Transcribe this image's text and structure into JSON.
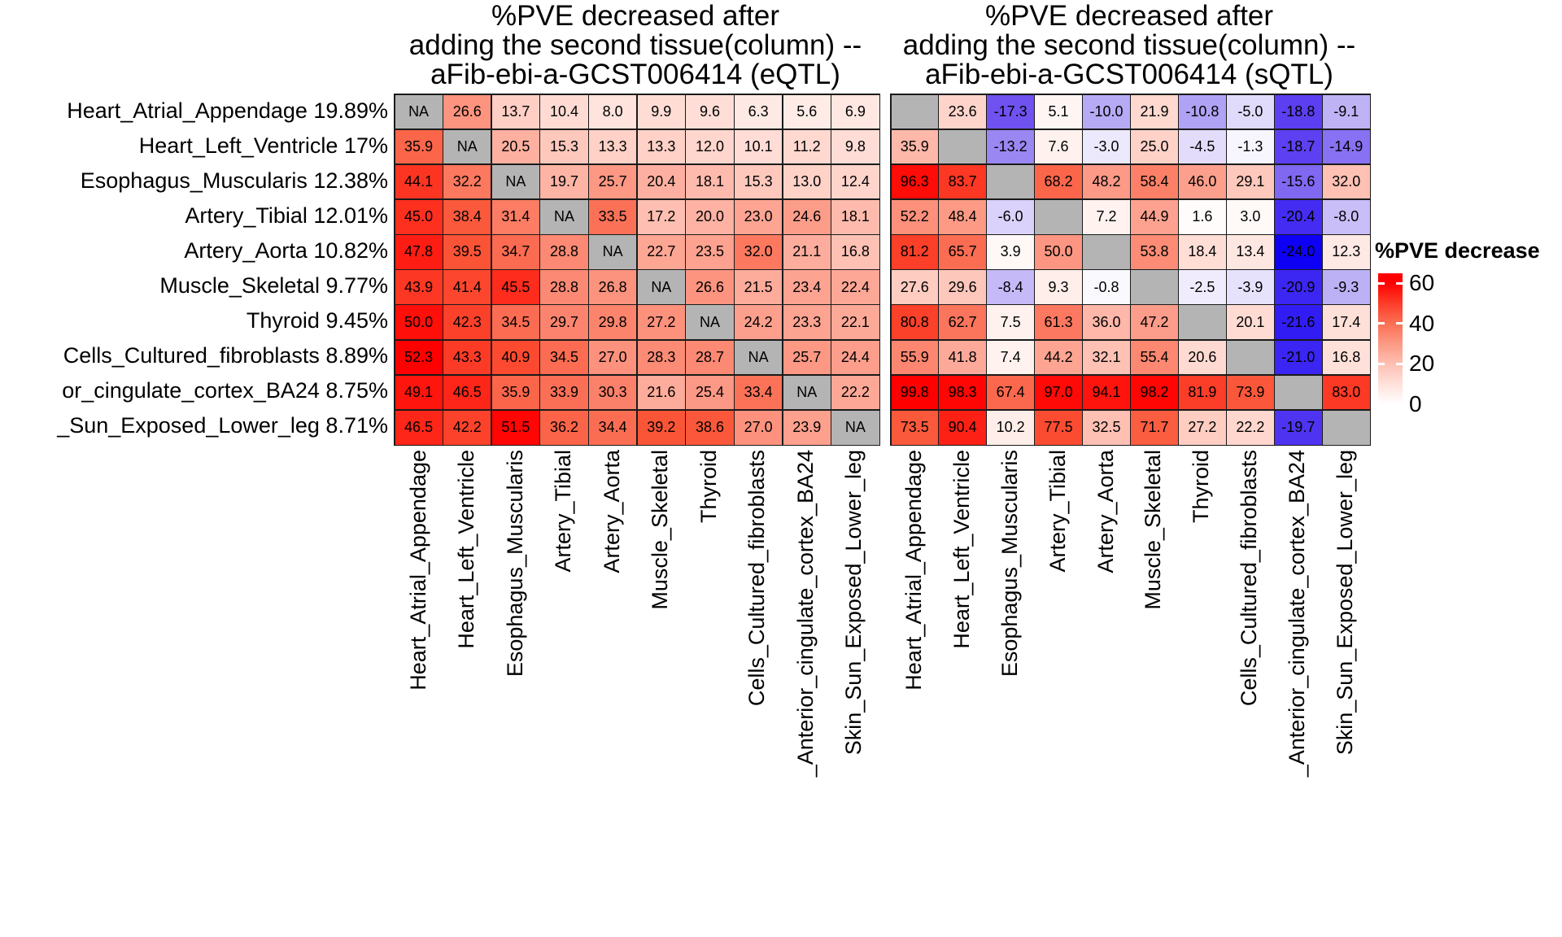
{
  "legend": {
    "title": "%PVE decrease",
    "tick_labels": [
      "60",
      "40",
      "20",
      "0"
    ]
  },
  "chart_data": [
    {
      "type": "heatmap",
      "qtl": "eQTL",
      "title_lines": [
        "%PVE decreased after",
        "adding the second tissue(column) --",
        "aFib-ebi-a-GCST006414 (eQTL)"
      ],
      "rows": [
        "Heart_Atrial_Appendage 19.89%",
        "Heart_Left_Ventricle 17%",
        "Esophagus_Muscularis 12.38%",
        "Artery_Tibial 12.01%",
        "Artery_Aorta 10.82%",
        "Muscle_Skeletal 9.77%",
        "Thyroid 9.45%",
        "Cells_Cultured_fibroblasts 8.89%",
        "or_cingulate_cortex_BA24 8.75%",
        "_Sun_Exposed_Lower_leg 8.71%"
      ],
      "columns": [
        "Heart_Atrial_Appendage",
        "Heart_Left_Ventricle",
        "Esophagus_Muscularis",
        "Artery_Tibial",
        "Artery_Aorta",
        "Muscle_Skeletal",
        "Thyroid",
        "Cells_Cultured_fibroblasts",
        "_Anterior_cingulate_cortex_BA24",
        "Skin_Sun_Exposed_Lower_leg"
      ],
      "na_text": "NA",
      "color_scale": {
        "pos_max": 52.3,
        "neg_min": -24,
        "zero_color": "#FFFFFF",
        "high_color": "#FF0000",
        "low_color": "#0D00F5",
        "na_color": "#B4B4B4"
      },
      "values": [
        [
          "NA",
          26.6,
          13.7,
          10.4,
          8.0,
          9.9,
          9.6,
          6.3,
          5.6,
          6.9
        ],
        [
          35.9,
          "NA",
          20.5,
          15.3,
          13.3,
          13.3,
          12.0,
          10.1,
          11.2,
          9.8
        ],
        [
          44.1,
          32.2,
          "NA",
          19.7,
          25.7,
          20.4,
          18.1,
          15.3,
          13.0,
          12.4
        ],
        [
          45.0,
          38.4,
          31.4,
          "NA",
          33.5,
          17.2,
          20.0,
          23.0,
          24.6,
          18.1
        ],
        [
          47.8,
          39.5,
          34.7,
          28.8,
          "NA",
          22.7,
          23.5,
          32.0,
          21.1,
          16.8
        ],
        [
          43.9,
          41.4,
          45.5,
          28.8,
          26.8,
          "NA",
          26.6,
          21.5,
          23.4,
          22.4
        ],
        [
          50.0,
          42.3,
          34.5,
          29.7,
          29.8,
          27.2,
          "NA",
          24.2,
          23.3,
          22.1
        ],
        [
          52.3,
          43.3,
          40.9,
          34.5,
          27.0,
          28.3,
          28.7,
          "NA",
          25.7,
          24.4
        ],
        [
          49.1,
          46.5,
          35.9,
          33.9,
          30.3,
          21.6,
          25.4,
          33.4,
          "NA",
          22.2
        ],
        [
          46.5,
          42.2,
          51.5,
          36.2,
          34.4,
          39.2,
          38.6,
          27.0,
          23.9,
          "NA"
        ]
      ]
    },
    {
      "type": "heatmap",
      "qtl": "sQTL",
      "title_lines": [
        "%PVE decreased after",
        "adding the second tissue(column) --",
        "aFib-ebi-a-GCST006414 (sQTL)"
      ],
      "rows": [
        "Heart_Atrial_Appendage 19.89%",
        "Heart_Left_Ventricle 17%",
        "Esophagus_Muscularis 12.38%",
        "Artery_Tibial 12.01%",
        "Artery_Aorta 10.82%",
        "Muscle_Skeletal 9.77%",
        "Thyroid 9.45%",
        "Cells_Cultured_fibroblasts 8.89%",
        "or_cingulate_cortex_BA24 8.75%",
        "_Sun_Exposed_Lower_leg 8.71%"
      ],
      "columns": [
        "Heart_Atrial_Appendage",
        "Heart_Left_Ventricle",
        "Esophagus_Muscularis",
        "Artery_Tibial",
        "Artery_Aorta",
        "Muscle_Skeletal",
        "Thyroid",
        "Cells_Cultured_fibroblasts",
        "_Anterior_cingulate_cortex_BA24",
        "Skin_Sun_Exposed_Lower_leg"
      ],
      "na_text": "",
      "color_scale": {
        "pos_max": 99.8,
        "neg_min": -24,
        "zero_color": "#FFFFFF",
        "high_color": "#FF0000",
        "low_color": "#0D00F5",
        "na_color": "#B4B4B4"
      },
      "values": [
        [
          null,
          23.6,
          -17.3,
          5.1,
          -10.0,
          21.9,
          -10.8,
          -5.0,
          -18.8,
          -9.1
        ],
        [
          35.9,
          null,
          -13.2,
          7.6,
          -3.0,
          25.0,
          -4.5,
          -1.3,
          -18.7,
          -14.9
        ],
        [
          96.3,
          83.7,
          null,
          68.2,
          48.2,
          58.4,
          46.0,
          29.1,
          -15.6,
          32.0
        ],
        [
          52.2,
          48.4,
          -6.0,
          null,
          7.2,
          44.9,
          1.6,
          3.0,
          -20.4,
          -8.0
        ],
        [
          81.2,
          65.7,
          3.9,
          50.0,
          null,
          53.8,
          18.4,
          13.4,
          -24.0,
          12.3
        ],
        [
          27.6,
          29.6,
          -8.4,
          9.3,
          -0.8,
          null,
          -2.5,
          -3.9,
          -20.9,
          -9.3
        ],
        [
          80.8,
          62.7,
          7.5,
          61.3,
          36.0,
          47.2,
          null,
          20.1,
          -21.6,
          17.4
        ],
        [
          55.9,
          41.8,
          7.4,
          44.2,
          32.1,
          55.4,
          20.6,
          null,
          -21.0,
          16.8
        ],
        [
          99.8,
          98.3,
          67.4,
          97.0,
          94.1,
          98.2,
          81.9,
          73.9,
          null,
          83.0
        ],
        [
          73.5,
          90.4,
          10.2,
          77.5,
          32.5,
          71.7,
          27.2,
          22.2,
          -19.7,
          null
        ]
      ]
    }
  ]
}
